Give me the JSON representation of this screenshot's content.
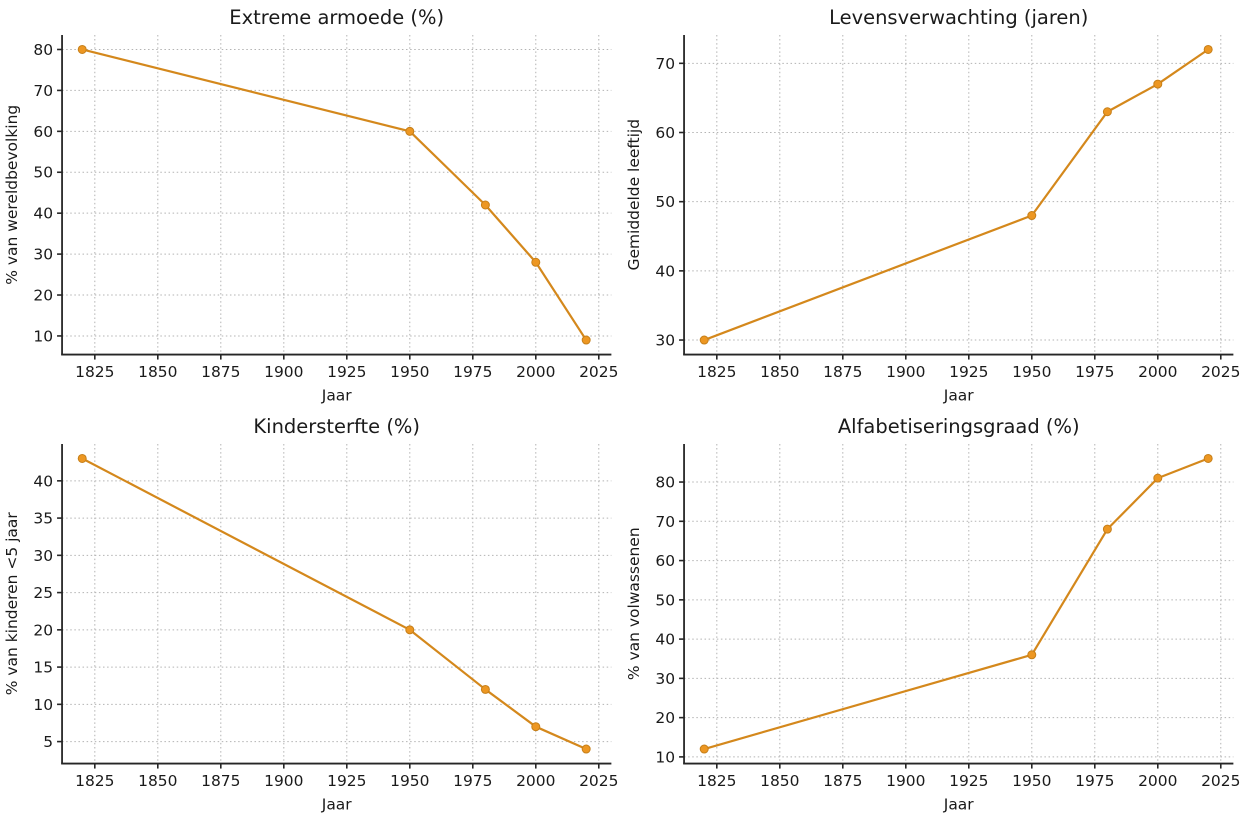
{
  "figure": {
    "background_color": "#ffffff",
    "layout": "2x2-subplots"
  },
  "style": {
    "line_color": "#d4881c",
    "marker_color": "#ed9722",
    "marker_edge_color": "#c67f19",
    "grid_color": "#b3b3b3",
    "spine_color": "#262626",
    "text_color": "#1a1a1a",
    "title_font_size": 19.5,
    "label_font_size": 15.5,
    "tick_font_size": 15.5
  },
  "chart_data": [
    {
      "type": "line",
      "title": "Extreme armoede (%)",
      "xlabel": "Jaar",
      "ylabel": "% van wereldbevolking",
      "x": [
        1820,
        1950,
        1980,
        2000,
        2020
      ],
      "values": [
        80,
        60,
        42,
        28,
        9
      ],
      "xlim": [
        1812,
        2030
      ],
      "ylim": [
        5.45,
        83.55
      ],
      "xticks": [
        1825,
        1850,
        1875,
        1900,
        1925,
        1950,
        1975,
        2000,
        2025
      ],
      "yticks": [
        10,
        20,
        30,
        40,
        50,
        60,
        70,
        80
      ],
      "grid": true,
      "legend": "none"
    },
    {
      "type": "line",
      "title": "Levensverwachting (jaren)",
      "xlabel": "Jaar",
      "ylabel": "Gemiddelde leeftijd",
      "x": [
        1820,
        1950,
        1980,
        2000,
        2020
      ],
      "values": [
        30,
        48,
        63,
        67,
        72
      ],
      "xlim": [
        1812,
        2030
      ],
      "ylim": [
        27.9,
        74.1
      ],
      "xticks": [
        1825,
        1850,
        1875,
        1900,
        1925,
        1950,
        1975,
        2000,
        2025
      ],
      "yticks": [
        30,
        40,
        50,
        60,
        70
      ],
      "grid": true,
      "legend": "none"
    },
    {
      "type": "line",
      "title": "Kindersterfte (%)",
      "xlabel": "Jaar",
      "ylabel": "% van kinderen <5 jaar",
      "x": [
        1820,
        1950,
        1980,
        2000,
        2020
      ],
      "values": [
        43,
        20,
        12,
        7,
        4
      ],
      "xlim": [
        1812,
        2030
      ],
      "ylim": [
        2.05,
        44.95
      ],
      "xticks": [
        1825,
        1850,
        1875,
        1900,
        1925,
        1950,
        1975,
        2000,
        2025
      ],
      "yticks": [
        5,
        10,
        15,
        20,
        25,
        30,
        35,
        40
      ],
      "grid": true,
      "legend": "none"
    },
    {
      "type": "line",
      "title": "Alfabetiseringsgraad (%)",
      "xlabel": "Jaar",
      "ylabel": "% van volwassenen",
      "x": [
        1820,
        1950,
        1980,
        2000,
        2020
      ],
      "values": [
        12,
        36,
        68,
        81,
        86
      ],
      "xlim": [
        1812,
        2030
      ],
      "ylim": [
        8.3,
        89.7
      ],
      "xticks": [
        1825,
        1850,
        1875,
        1900,
        1925,
        1950,
        1975,
        2000,
        2025
      ],
      "yticks": [
        10,
        20,
        30,
        40,
        50,
        60,
        70,
        80
      ],
      "grid": true,
      "legend": "none"
    }
  ]
}
